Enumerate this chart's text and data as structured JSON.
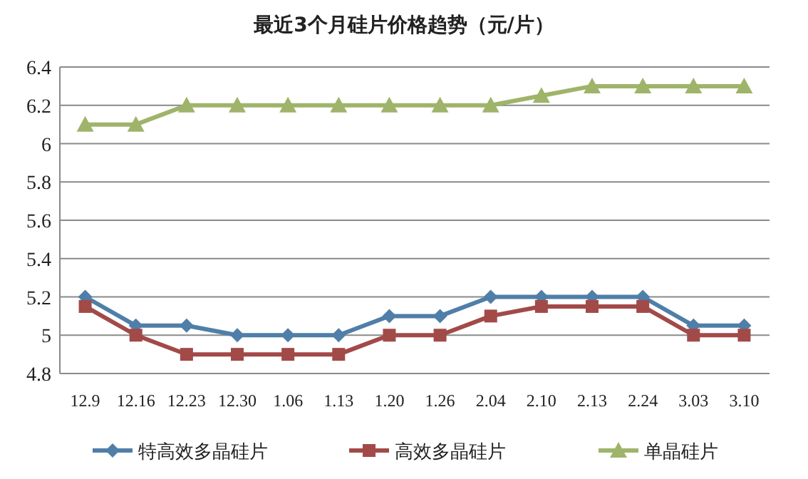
{
  "chart_data": {
    "type": "line",
    "title": "最近3个月硅片价格趋势（元/片）",
    "categories": [
      "12.9",
      "12.16",
      "12.23",
      "12.30",
      "1.06",
      "1.13",
      "1.20",
      "1.26",
      "2.04",
      "2.10",
      "2.13",
      "2.24",
      "3.03",
      "3.10"
    ],
    "series": [
      {
        "name": "特高效多晶硅片",
        "color": "#4f7fa8",
        "marker": "diamond",
        "values": [
          5.2,
          5.05,
          5.05,
          5.0,
          5.0,
          5.0,
          5.1,
          5.1,
          5.2,
          5.2,
          5.2,
          5.2,
          5.05,
          5.05
        ]
      },
      {
        "name": "高效多晶硅片",
        "color": "#a24a48",
        "marker": "square",
        "values": [
          5.15,
          5.0,
          4.9,
          4.9,
          4.9,
          4.9,
          5.0,
          5.0,
          5.1,
          5.15,
          5.15,
          5.15,
          5.0,
          5.0
        ]
      },
      {
        "name": "单晶硅片",
        "color": "#9fb46a",
        "marker": "triangle",
        "values": [
          6.1,
          6.1,
          6.2,
          6.2,
          6.2,
          6.2,
          6.2,
          6.2,
          6.2,
          6.25,
          6.3,
          6.3,
          6.3,
          6.3
        ]
      }
    ],
    "ylim": [
      4.8,
      6.4
    ],
    "yticks": [
      4.8,
      5,
      5.2,
      5.4,
      5.6,
      5.8,
      6,
      6.2,
      6.4
    ],
    "grid": "y",
    "legend": "bottom"
  }
}
